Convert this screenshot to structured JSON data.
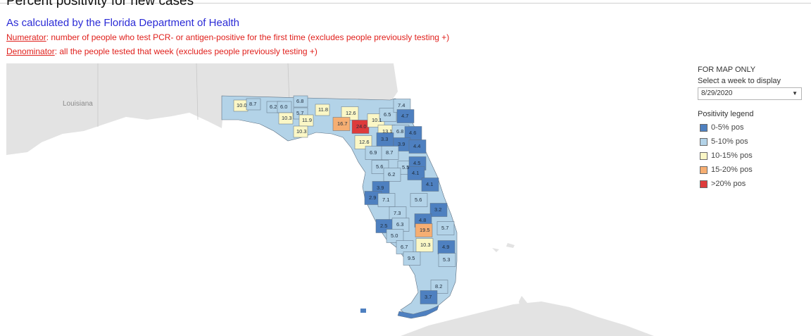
{
  "header": {
    "title": "Percent positivity for new cases",
    "subtitle": "As calculated by the Florida Department of Health",
    "numerator_label": "Numerator",
    "numerator_text": ": number of people who test PCR- or antigen-positive for the first time (excludes people previously testing +)",
    "denominator_label": "Denominator",
    "denominator_text": ": all the people tested that week (excludes people previously testing +)"
  },
  "map": {
    "place_labels": [
      "Louisiana"
    ],
    "colors": {
      "land": "#e3e3e3",
      "water": "#ffffff",
      "bin_0_5": "#4e80c0",
      "bin_5_10": "#b3d3e8",
      "bin_10_15": "#fbf7c6",
      "bin_15_20": "#f6ae72",
      "bin_20_plus": "#de3b3b"
    },
    "county_values": [
      "10.0",
      "8.7",
      "6.2",
      "6.0",
      "6.8",
      "5.7",
      "10.3",
      "11.9",
      "11.8",
      "10.3",
      "12.6",
      "16.7",
      "24.0",
      "10.1",
      "6.5",
      "7.4",
      "4.7",
      "13.1",
      "6.8",
      "4.6",
      "12.6",
      "3.3",
      "3.9",
      "4.4",
      "6.9",
      "8.7",
      "5.6",
      "5.5",
      "4.5",
      "4.1",
      "6.2",
      "3.9",
      "4.1",
      "2.9",
      "7.1",
      "5.6",
      "3.2",
      "7.3",
      "4.8",
      "2.5",
      "6.3",
      "19.5",
      "5.7",
      "5.0",
      "6.7",
      "10.3",
      "4.9",
      "9.5",
      "5.3",
      "8.2",
      "3.7"
    ]
  },
  "panel": {
    "map_only_label": "FOR MAP ONLY",
    "select_week_label": "Select a week to display",
    "selected_week": "8/29/2020",
    "legend_title": "Positivity legend",
    "legend": [
      {
        "label": "0-5% pos",
        "color": "#4e80c0"
      },
      {
        "label": "5-10% pos",
        "color": "#b3d3e8"
      },
      {
        "label": "10-15% pos",
        "color": "#fbf7c6"
      },
      {
        "label": "15-20% pos",
        "color": "#f6ae72"
      },
      {
        "label": ">20% pos",
        "color": "#de3b3b"
      }
    ]
  }
}
